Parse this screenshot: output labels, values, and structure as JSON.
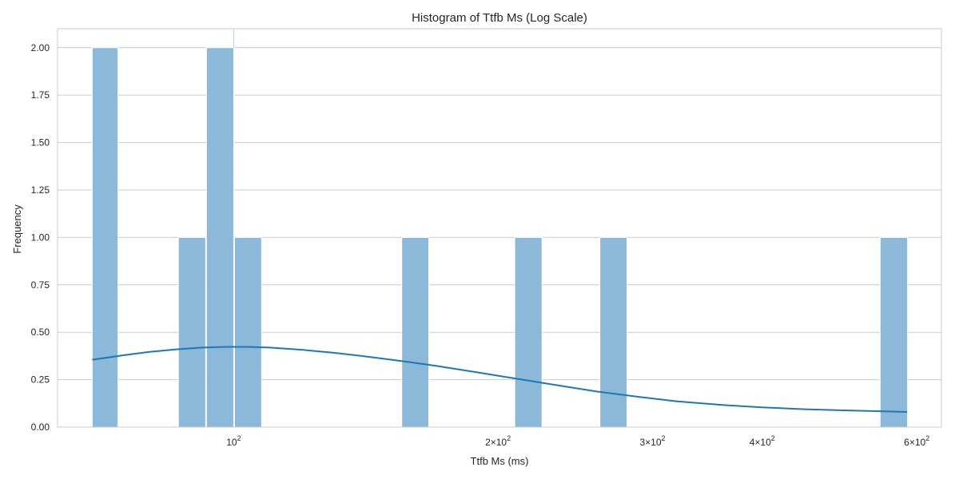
{
  "chart_data": {
    "type": "bar",
    "title": "Histogram of Ttfb Ms (Log Scale)",
    "xlabel": "Ttfb Ms (ms)",
    "ylabel": "Frequency",
    "x_scale": "log",
    "xlim": [
      63,
      640
    ],
    "ylim": [
      0,
      2.1
    ],
    "grid": true,
    "bar_color": "#8cb8d9",
    "bar_edge_color": "#ffffff",
    "kde_color": "#1f77b4",
    "grid_color": "#cccccc",
    "y_ticks": [
      0.0,
      0.25,
      0.5,
      0.75,
      1.0,
      1.25,
      1.5,
      1.75,
      2.0
    ],
    "y_tick_labels": [
      "0.00",
      "0.25",
      "0.50",
      "0.75",
      "1.00",
      "1.25",
      "1.50",
      "1.75",
      "2.00"
    ],
    "x_ticks": [
      {
        "value": 100,
        "mantissa": "",
        "exponent": "2"
      },
      {
        "value": 200,
        "mantissa": "2",
        "exponent": "2"
      },
      {
        "value": 300,
        "mantissa": "3",
        "exponent": "2"
      },
      {
        "value": 400,
        "mantissa": "4",
        "exponent": "2"
      },
      {
        "value": 600,
        "mantissa": "6",
        "exponent": "2"
      }
    ],
    "bins": [
      {
        "x0": 69.0,
        "x1": 73.8,
        "count": 2
      },
      {
        "x0": 86.5,
        "x1": 92.9,
        "count": 1
      },
      {
        "x0": 93.1,
        "x1": 100.0,
        "count": 2
      },
      {
        "x0": 100.2,
        "x1": 107.6,
        "count": 1
      },
      {
        "x0": 155.4,
        "x1": 166.8,
        "count": 1
      },
      {
        "x0": 209.0,
        "x1": 224.5,
        "count": 1
      },
      {
        "x0": 261.3,
        "x1": 280.6,
        "count": 1
      },
      {
        "x0": 545.0,
        "x1": 585.5,
        "count": 1
      }
    ],
    "kde": {
      "x": [
        69,
        75,
        80,
        86,
        92,
        98,
        104,
        110,
        120,
        130,
        140,
        155,
        170,
        190,
        210,
        235,
        260,
        290,
        320,
        360,
        400,
        450,
        500,
        550,
        585
      ],
      "y": [
        0.355,
        0.379,
        0.396,
        0.41,
        0.419,
        0.423,
        0.423,
        0.419,
        0.407,
        0.392,
        0.375,
        0.349,
        0.323,
        0.288,
        0.255,
        0.219,
        0.187,
        0.159,
        0.136,
        0.117,
        0.104,
        0.094,
        0.088,
        0.083,
        0.08
      ]
    }
  }
}
